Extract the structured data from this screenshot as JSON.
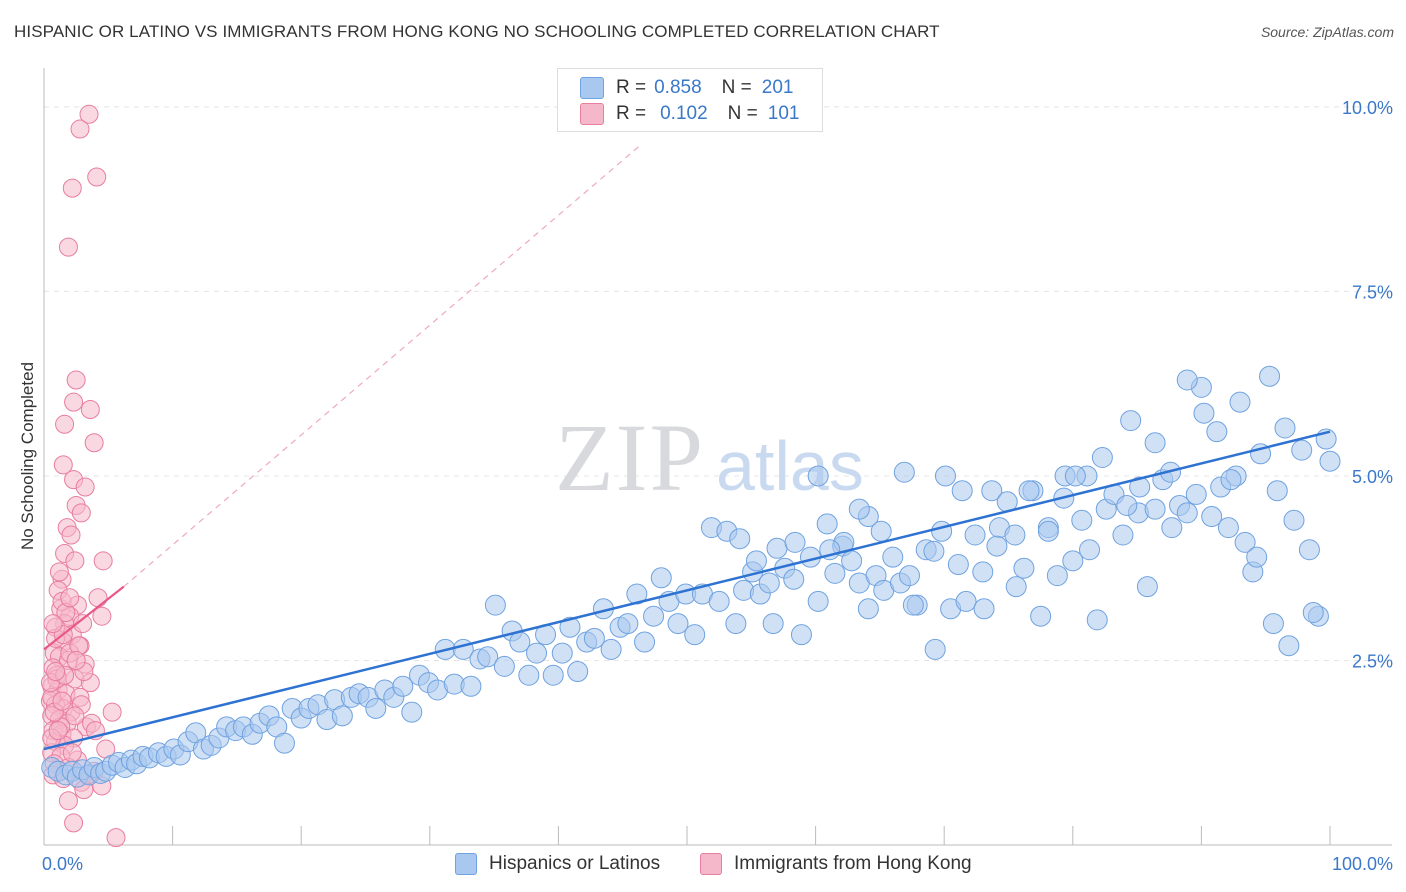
{
  "title": "HISPANIC OR LATINO VS IMMIGRANTS FROM HONG KONG NO SCHOOLING COMPLETED CORRELATION CHART",
  "source": "Source: ZipAtlas.com",
  "watermark": {
    "zip": "ZIP",
    "atlas": "atlas"
  },
  "legend": {
    "series": [
      {
        "r_label": "R =",
        "r_value": "0.858",
        "n_label": "N =",
        "n_value": "201",
        "color": "#a9c8ef"
      },
      {
        "r_label": "R =",
        "r_value": "0.102",
        "n_label": "N =",
        "n_value": "101",
        "color": "#f5b8cb"
      }
    ]
  },
  "chart_data": {
    "type": "scatter",
    "title": "HISPANIC OR LATINO VS IMMIGRANTS FROM HONG KONG NO SCHOOLING COMPLETED CORRELATION CHART",
    "xlabel": "",
    "ylabel": "No Schooling Completed",
    "xlim": [
      0,
      100
    ],
    "ylim": [
      0,
      10.5
    ],
    "x_tick_labels": [
      "0.0%",
      "100.0%"
    ],
    "y_ticks": [
      2.5,
      5.0,
      7.5,
      10.0
    ],
    "y_tick_labels": [
      "2.5%",
      "5.0%",
      "7.5%",
      "10.0%"
    ],
    "grid": true,
    "series": [
      {
        "name": "Hispanics or Latinos",
        "color": "#6fa2e0",
        "fill": "#a9c8ef",
        "trend": {
          "x": [
            0,
            100
          ],
          "y": [
            1.3,
            5.6
          ],
          "color": "#2e72d2"
        },
        "points": [
          [
            0.6,
            1.05
          ],
          [
            1.1,
            1.0
          ],
          [
            1.7,
            0.95
          ],
          [
            2.2,
            1.0
          ],
          [
            2.6,
            0.92
          ],
          [
            3.0,
            1.02
          ],
          [
            3.5,
            0.95
          ],
          [
            3.9,
            1.05
          ],
          [
            4.4,
            0.97
          ],
          [
            4.8,
            1.0
          ],
          [
            5.3,
            1.08
          ],
          [
            5.8,
            1.12
          ],
          [
            6.3,
            1.05
          ],
          [
            6.8,
            1.15
          ],
          [
            7.2,
            1.1
          ],
          [
            7.7,
            1.2
          ],
          [
            8.2,
            1.18
          ],
          [
            8.9,
            1.25
          ],
          [
            9.5,
            1.2
          ],
          [
            10.1,
            1.3
          ],
          [
            10.6,
            1.22
          ],
          [
            11.2,
            1.4
          ],
          [
            11.8,
            1.52
          ],
          [
            12.4,
            1.3
          ],
          [
            13.0,
            1.35
          ],
          [
            13.6,
            1.45
          ],
          [
            14.2,
            1.6
          ],
          [
            14.9,
            1.55
          ],
          [
            15.5,
            1.6
          ],
          [
            16.2,
            1.5
          ],
          [
            16.8,
            1.65
          ],
          [
            17.5,
            1.75
          ],
          [
            18.1,
            1.6
          ],
          [
            18.7,
            1.38
          ],
          [
            19.3,
            1.85
          ],
          [
            20.0,
            1.72
          ],
          [
            20.6,
            1.85
          ],
          [
            21.3,
            1.9
          ],
          [
            22.0,
            1.7
          ],
          [
            22.6,
            1.97
          ],
          [
            23.2,
            1.75
          ],
          [
            23.9,
            2.0
          ],
          [
            24.5,
            2.05
          ],
          [
            25.2,
            2.0
          ],
          [
            25.8,
            1.85
          ],
          [
            26.5,
            2.1
          ],
          [
            27.2,
            2.0
          ],
          [
            27.9,
            2.15
          ],
          [
            28.6,
            1.8
          ],
          [
            29.2,
            2.3
          ],
          [
            29.9,
            2.2
          ],
          [
            30.6,
            2.1
          ],
          [
            31.2,
            2.65
          ],
          [
            31.9,
            2.18
          ],
          [
            32.6,
            2.65
          ],
          [
            33.2,
            2.15
          ],
          [
            33.9,
            2.52
          ],
          [
            34.5,
            2.55
          ],
          [
            35.1,
            3.25
          ],
          [
            35.8,
            2.42
          ],
          [
            36.4,
            2.9
          ],
          [
            37.0,
            2.75
          ],
          [
            37.7,
            2.3
          ],
          [
            38.3,
            2.6
          ],
          [
            39.0,
            2.85
          ],
          [
            39.6,
            2.3
          ],
          [
            40.3,
            2.6
          ],
          [
            40.9,
            2.95
          ],
          [
            41.5,
            2.35
          ],
          [
            42.2,
            2.75
          ],
          [
            42.8,
            2.8
          ],
          [
            43.5,
            3.2
          ],
          [
            44.1,
            2.65
          ],
          [
            44.8,
            2.95
          ],
          [
            45.4,
            3.0
          ],
          [
            46.1,
            3.4
          ],
          [
            46.7,
            2.75
          ],
          [
            47.4,
            3.1
          ],
          [
            48.0,
            3.62
          ],
          [
            48.6,
            3.3
          ],
          [
            49.3,
            3.0
          ],
          [
            49.9,
            3.4
          ],
          [
            50.6,
            2.85
          ],
          [
            51.2,
            3.4
          ],
          [
            51.9,
            4.3
          ],
          [
            52.5,
            3.3
          ],
          [
            53.1,
            4.25
          ],
          [
            53.8,
            3.0
          ],
          [
            54.4,
            3.45
          ],
          [
            55.1,
            3.7
          ],
          [
            55.7,
            3.4
          ],
          [
            56.4,
            3.55
          ],
          [
            57.0,
            4.02
          ],
          [
            57.6,
            3.75
          ],
          [
            58.3,
            3.6
          ],
          [
            58.9,
            2.85
          ],
          [
            59.6,
            3.9
          ],
          [
            60.2,
            3.3
          ],
          [
            60.9,
            4.35
          ],
          [
            61.5,
            3.68
          ],
          [
            62.1,
            4.05
          ],
          [
            62.8,
            3.85
          ],
          [
            63.4,
            3.55
          ],
          [
            64.1,
            3.2
          ],
          [
            64.7,
            3.65
          ],
          [
            65.3,
            3.45
          ],
          [
            66.0,
            3.9
          ],
          [
            66.6,
            3.55
          ],
          [
            67.3,
            3.65
          ],
          [
            67.9,
            3.25
          ],
          [
            68.6,
            4.0
          ],
          [
            69.2,
            3.98
          ],
          [
            69.8,
            4.25
          ],
          [
            70.5,
            3.2
          ],
          [
            71.1,
            3.8
          ],
          [
            71.7,
            3.3
          ],
          [
            72.4,
            4.2
          ],
          [
            73.0,
            3.7
          ],
          [
            73.7,
            4.8
          ],
          [
            74.3,
            4.3
          ],
          [
            74.9,
            4.65
          ],
          [
            75.6,
            3.5
          ],
          [
            76.2,
            3.75
          ],
          [
            76.9,
            4.8
          ],
          [
            77.5,
            3.1
          ],
          [
            78.1,
            4.3
          ],
          [
            78.8,
            3.65
          ],
          [
            79.4,
            5.0
          ],
          [
            80.0,
            3.85
          ],
          [
            80.7,
            4.4
          ],
          [
            81.3,
            4.0
          ],
          [
            81.9,
            3.05
          ],
          [
            82.6,
            4.55
          ],
          [
            83.2,
            4.75
          ],
          [
            83.9,
            4.2
          ],
          [
            84.5,
            5.75
          ],
          [
            85.1,
            4.5
          ],
          [
            85.8,
            3.5
          ],
          [
            86.4,
            5.45
          ],
          [
            87.0,
            4.95
          ],
          [
            87.7,
            4.3
          ],
          [
            88.3,
            4.6
          ],
          [
            88.9,
            4.5
          ],
          [
            89.6,
            4.75
          ],
          [
            90.2,
            5.85
          ],
          [
            90.8,
            4.45
          ],
          [
            91.5,
            4.85
          ],
          [
            92.1,
            4.3
          ],
          [
            92.7,
            5.0
          ],
          [
            93.4,
            4.1
          ],
          [
            94.0,
            3.7
          ],
          [
            94.6,
            5.3
          ],
          [
            95.3,
            6.35
          ],
          [
            95.9,
            4.8
          ],
          [
            96.5,
            5.65
          ],
          [
            97.2,
            4.4
          ],
          [
            97.8,
            5.35
          ],
          [
            98.4,
            4.0
          ],
          [
            99.1,
            3.1
          ],
          [
            99.7,
            5.5
          ],
          [
            100.0,
            5.2
          ],
          [
            98.7,
            3.15
          ],
          [
            96.8,
            2.7
          ],
          [
            95.6,
            3.0
          ],
          [
            94.3,
            3.9
          ],
          [
            93.0,
            6.0
          ],
          [
            92.3,
            4.95
          ],
          [
            91.2,
            5.6
          ],
          [
            90.0,
            6.2
          ],
          [
            88.9,
            6.3
          ],
          [
            87.6,
            5.05
          ],
          [
            86.4,
            4.55
          ],
          [
            85.2,
            4.85
          ],
          [
            84.2,
            4.6
          ],
          [
            82.3,
            5.25
          ],
          [
            81.1,
            5.0
          ],
          [
            80.2,
            5.0
          ],
          [
            79.3,
            4.7
          ],
          [
            78.1,
            4.25
          ],
          [
            76.6,
            4.8
          ],
          [
            75.5,
            4.2
          ],
          [
            74.1,
            4.05
          ],
          [
            73.1,
            3.2
          ],
          [
            71.4,
            4.8
          ],
          [
            70.1,
            5.0
          ],
          [
            69.3,
            2.65
          ],
          [
            67.6,
            3.25
          ],
          [
            66.9,
            5.05
          ],
          [
            65.1,
            4.25
          ],
          [
            64.1,
            4.45
          ],
          [
            63.4,
            4.55
          ],
          [
            62.2,
            4.1
          ],
          [
            61.1,
            4.0
          ],
          [
            60.2,
            5.0
          ],
          [
            58.4,
            4.1
          ],
          [
            56.7,
            3.0
          ],
          [
            55.4,
            3.85
          ],
          [
            54.1,
            4.15
          ]
        ]
      },
      {
        "name": "Immigrants from Hong Kong",
        "color": "#e87da0",
        "fill": "#f5b8cb",
        "trend": {
          "x": [
            0,
            6.2
          ],
          "y": [
            2.65,
            3.5
          ],
          "color": "#e8588a"
        },
        "trend_extension": {
          "x": [
            6.2,
            46.5
          ],
          "y": [
            3.5,
            9.5
          ]
        },
        "points": [
          [
            2.8,
            9.7
          ],
          [
            3.5,
            9.9
          ],
          [
            4.1,
            9.05
          ],
          [
            2.2,
            8.9
          ],
          [
            1.9,
            8.1
          ],
          [
            2.5,
            6.3
          ],
          [
            2.3,
            6.0
          ],
          [
            3.6,
            5.9
          ],
          [
            1.6,
            5.7
          ],
          [
            3.9,
            5.45
          ],
          [
            1.5,
            5.15
          ],
          [
            2.3,
            4.95
          ],
          [
            3.2,
            4.85
          ],
          [
            2.5,
            4.6
          ],
          [
            2.9,
            4.5
          ],
          [
            1.8,
            4.3
          ],
          [
            2.1,
            4.2
          ],
          [
            1.6,
            3.95
          ],
          [
            2.4,
            3.85
          ],
          [
            4.6,
            3.85
          ],
          [
            1.4,
            3.6
          ],
          [
            1.1,
            3.45
          ],
          [
            4.2,
            3.35
          ],
          [
            2.6,
            3.25
          ],
          [
            1.3,
            3.2
          ],
          [
            2.0,
            3.1
          ],
          [
            1.6,
            3.0
          ],
          [
            4.5,
            3.1
          ],
          [
            0.9,
            2.95
          ],
          [
            2.2,
            2.85
          ],
          [
            1.5,
            2.75
          ],
          [
            2.8,
            2.7
          ],
          [
            0.8,
            2.6
          ],
          [
            1.2,
            2.55
          ],
          [
            1.9,
            2.5
          ],
          [
            3.2,
            2.45
          ],
          [
            0.7,
            2.4
          ],
          [
            1.0,
            2.3
          ],
          [
            2.4,
            2.25
          ],
          [
            3.6,
            2.2
          ],
          [
            0.6,
            2.15
          ],
          [
            1.1,
            2.1
          ],
          [
            1.7,
            2.05
          ],
          [
            2.8,
            2.0
          ],
          [
            0.5,
            1.95
          ],
          [
            0.9,
            1.9
          ],
          [
            1.5,
            1.85
          ],
          [
            2.1,
            1.8
          ],
          [
            5.3,
            1.8
          ],
          [
            0.6,
            1.75
          ],
          [
            1.2,
            1.7
          ],
          [
            1.8,
            1.65
          ],
          [
            3.3,
            1.6
          ],
          [
            0.7,
            1.55
          ],
          [
            1.4,
            1.5
          ],
          [
            2.3,
            1.45
          ],
          [
            0.9,
            1.4
          ],
          [
            1.6,
            1.35
          ],
          [
            4.8,
            1.3
          ],
          [
            0.6,
            1.25
          ],
          [
            1.3,
            1.2
          ],
          [
            2.6,
            1.15
          ],
          [
            0.8,
            1.1
          ],
          [
            1.9,
            1.05
          ],
          [
            3.9,
            1.0
          ],
          [
            0.7,
            0.95
          ],
          [
            1.5,
            0.9
          ],
          [
            2.9,
            0.85
          ],
          [
            4.5,
            0.8
          ],
          [
            3.1,
            0.75
          ],
          [
            0.9,
            2.8
          ],
          [
            1.4,
            3.3
          ],
          [
            2.0,
            2.6
          ],
          [
            3.1,
            2.35
          ],
          [
            0.6,
            2.0
          ],
          [
            1.3,
            1.6
          ],
          [
            2.2,
            1.25
          ],
          [
            3.4,
            0.95
          ],
          [
            1.9,
            0.6
          ],
          [
            5.6,
            0.1
          ],
          [
            2.3,
            0.3
          ],
          [
            1.0,
            2.25
          ],
          [
            1.7,
            3.15
          ],
          [
            2.7,
            2.7
          ],
          [
            0.8,
            1.8
          ],
          [
            1.5,
            2.85
          ],
          [
            2.5,
            2.5
          ],
          [
            3.7,
            1.65
          ],
          [
            0.5,
            2.2
          ],
          [
            1.2,
            3.7
          ],
          [
            2.0,
            3.35
          ],
          [
            0.7,
            3.0
          ],
          [
            1.6,
            2.3
          ],
          [
            2.9,
            1.9
          ],
          [
            4.0,
            1.55
          ],
          [
            0.6,
            1.45
          ],
          [
            1.4,
            1.95
          ],
          [
            2.4,
            1.75
          ],
          [
            3.0,
            3.0
          ],
          [
            1.1,
            1.55
          ],
          [
            0.9,
            2.35
          ]
        ]
      }
    ]
  },
  "bottom_legend": [
    {
      "label": "Hispanics or Latinos",
      "color": "#a9c8ef"
    },
    {
      "label": "Immigrants from Hong Kong",
      "color": "#f5b8cb"
    }
  ]
}
